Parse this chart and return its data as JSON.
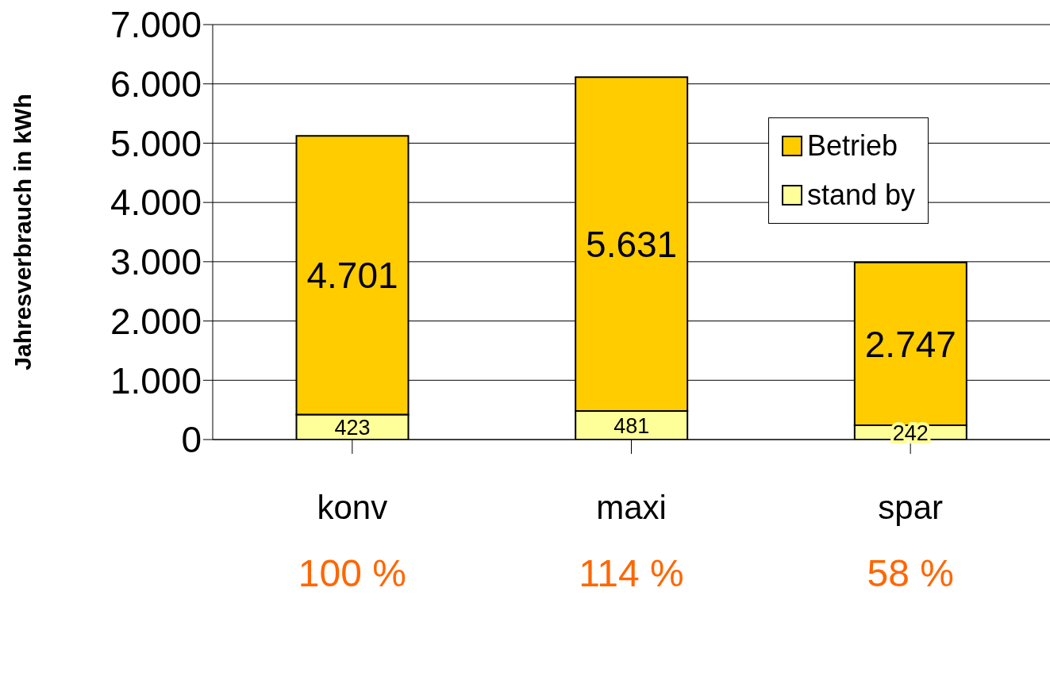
{
  "chart_data": {
    "type": "bar",
    "stacked": true,
    "categories": [
      "konv",
      "maxi",
      "spar"
    ],
    "series": [
      {
        "name": "stand by",
        "color": "#ffff99",
        "values": [
          423,
          481,
          242
        ],
        "value_labels": [
          "423",
          "481",
          "242"
        ]
      },
      {
        "name": "Betrieb",
        "color": "#ffcc00",
        "values": [
          4701,
          5631,
          2747
        ],
        "value_labels": [
          "4.701",
          "5.631",
          "2.747"
        ]
      }
    ],
    "ylabel": "Jahresverbrauch in kWh",
    "ylim": [
      0,
      7000
    ],
    "yticks": [
      {
        "value": 0,
        "label": "0"
      },
      {
        "value": 1000,
        "label": "1.000"
      },
      {
        "value": 2000,
        "label": "2.000"
      },
      {
        "value": 3000,
        "label": "3.000"
      },
      {
        "value": 4000,
        "label": "4.000"
      },
      {
        "value": 5000,
        "label": "5.000"
      },
      {
        "value": 6000,
        "label": "6.000"
      },
      {
        "value": 7000,
        "label": "7.000"
      }
    ],
    "grid": "y",
    "legend": "top right",
    "annotations": [
      "100 %",
      "114 %",
      "58 %"
    ]
  }
}
